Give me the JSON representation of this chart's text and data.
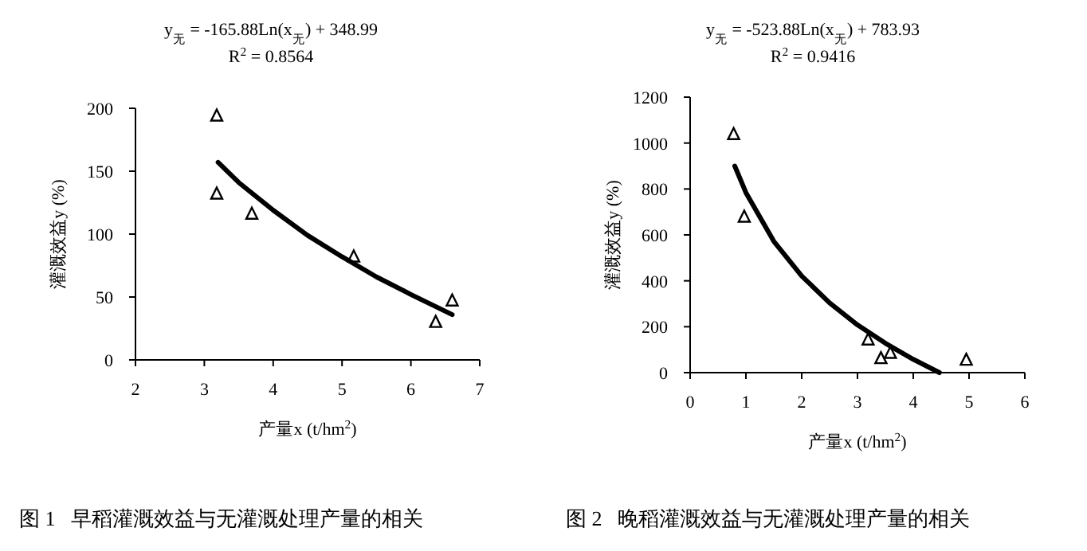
{
  "chart_data": [
    {
      "type": "scatter",
      "title": "图 1   早稻灌溉效益与无灌溉处理产量的相关",
      "xlabel": "产量x (t/hm$^{2}$)",
      "ylabel": "灌溉效益y (%)",
      "annotations": [
        "y$_{无}$ = -165.88Ln(x$_{无}$) + 348.99",
        "R$^{2}$ = 0.8564"
      ],
      "xlim": [
        2,
        7
      ],
      "ylim": [
        0,
        200
      ],
      "xticks": [
        2,
        3,
        4,
        5,
        6,
        7
      ],
      "yticks": [
        0,
        50,
        100,
        150,
        200
      ],
      "series": [
        {
          "marker": "triangle",
          "color": "#000000",
          "x": [
            3.18,
            3.18,
            3.69,
            5.17,
            6.36,
            6.6
          ],
          "values": [
            194,
            132,
            116,
            82,
            30,
            47
          ]
        },
        {
          "type": "line",
          "color": "#000000",
          "x": [
            3.2,
            3.5,
            4,
            4.5,
            5,
            5.5,
            6,
            6.6
          ],
          "values": [
            157,
            141,
            119,
            99,
            82,
            66,
            52,
            36
          ]
        }
      ]
    },
    {
      "type": "scatter",
      "title": "图 2   晚稻灌溉效益与无灌溉处理产量的相关",
      "xlabel": "产量x (t/hm$^{2}$)",
      "ylabel": "灌溉效益y (%)",
      "annotations": [
        "y$_{无}$ = -523.88Ln(x$_{无}$) + 783.93",
        "R$^{2}$ = 0.9416"
      ],
      "xlim": [
        0,
        6
      ],
      "ylim": [
        0,
        1200
      ],
      "xticks": [
        0,
        1,
        2,
        3,
        4,
        5,
        6
      ],
      "yticks": [
        0,
        200,
        400,
        600,
        800,
        1000,
        1200
      ],
      "series": [
        {
          "marker": "triangle",
          "color": "#000000",
          "x": [
            0.78,
            0.97,
            3.19,
            3.42,
            3.59,
            4.95
          ],
          "values": [
            1038,
            678,
            143,
            62,
            85,
            55
          ]
        },
        {
          "type": "line",
          "color": "#000000",
          "x": [
            0.8,
            1,
            1.5,
            2,
            2.5,
            3,
            3.5,
            4,
            4.47
          ],
          "values": [
            900,
            784,
            572,
            421,
            304,
            208,
            128,
            58,
            0
          ]
        }
      ]
    }
  ]
}
